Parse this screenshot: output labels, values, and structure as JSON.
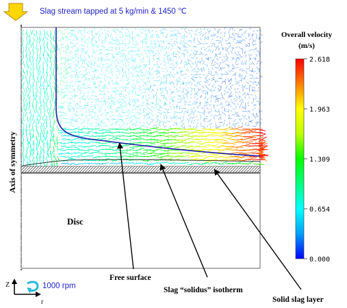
{
  "figure": {
    "top_label": "Slag stream tapped at 5 kg/min & 1450 ℃",
    "axis_label": "Axis of symmetry",
    "region_label": "Disc",
    "rotation_label": "1000 rpm",
    "coord_z": "Z",
    "coord_r": "r",
    "annotations": [
      "Free surface",
      "Slag “solidus” isotherm",
      "Solid slag layer"
    ],
    "colors": {
      "label_blue": "#2222cc",
      "arrow_fill": "#ffd700",
      "arrow_stroke": "#b8860b",
      "free_surface": "#1a1aa6",
      "rotation_icon": "#29b6d8"
    },
    "icons": [
      "inflow-arrow-icon",
      "rotation-icon",
      "coordinate-axes-icon"
    ]
  },
  "colorbar": {
    "title_line1": "Overall velocity",
    "title_line2": "(m/s)",
    "units": "m/s",
    "min": 0.0,
    "max": 2.618,
    "ticks": [
      "2.618",
      "1.963",
      "1.309",
      "0.654",
      "0.000"
    ],
    "colormap": [
      "#0000ff",
      "#00a0ff",
      "#00ffff",
      "#00ff80",
      "#00ff00",
      "#c0ff00",
      "#ffff00",
      "#ff8000",
      "#ff0000"
    ]
  }
}
